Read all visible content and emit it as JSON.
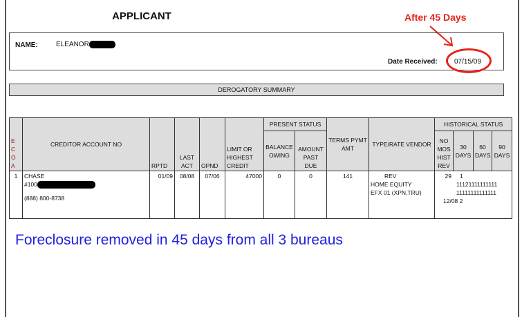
{
  "title": "APPLICANT",
  "annotation": {
    "text": "After 45 Days",
    "color": "#e8231b"
  },
  "applicant": {
    "name_label": "NAME:",
    "name_value": "ELEANOR",
    "date_label": "Date Received:",
    "date_value": "07/15/09"
  },
  "section_title": "DEROGATORY SUMMARY",
  "table": {
    "group_headers": {
      "present": "PRESENT STATUS",
      "historical": "HISTORICAL STATUS"
    },
    "headers": {
      "ecoa": "E C O A",
      "creditor": "CREDITOR ACCOUNT NO",
      "rptd": "RPTD",
      "last_act": "LAST ACT",
      "opnd": "OPND",
      "limit": "LIMIT OR HIGHEST CREDIT",
      "balance": "BALANCE OWING",
      "past_due": "AMOUNT PAST DUE",
      "terms": "TERMS PYMT AMT",
      "type": "TYPE/RATE VENDOR",
      "no_mos": "NO MOS HIST REV",
      "d30": "30 DAYS",
      "d60": "60 DAYS",
      "d90": "90 DAYS"
    },
    "row": {
      "ecoa": "1",
      "creditor": "CHASE",
      "account_prefix": "#100",
      "phone": "(888) 800-8738",
      "rptd": "01/09",
      "last_act": "08/08",
      "opnd": "07/06",
      "limit": "47000",
      "balance": "0",
      "past_due": "0",
      "terms": "141",
      "type": "REV",
      "type2": "HOME EQUITY",
      "vendor": "EFX 01 (XPN,TRU)",
      "no_mos": "29",
      "d30": "1",
      "hist_line1": "11121111111111",
      "hist_line2": "11111111111111",
      "hist_line3": "12/08 2"
    }
  },
  "note": {
    "text": "Foreclosure removed in 45 days from all 3 bureaus",
    "color": "#2020e0"
  }
}
